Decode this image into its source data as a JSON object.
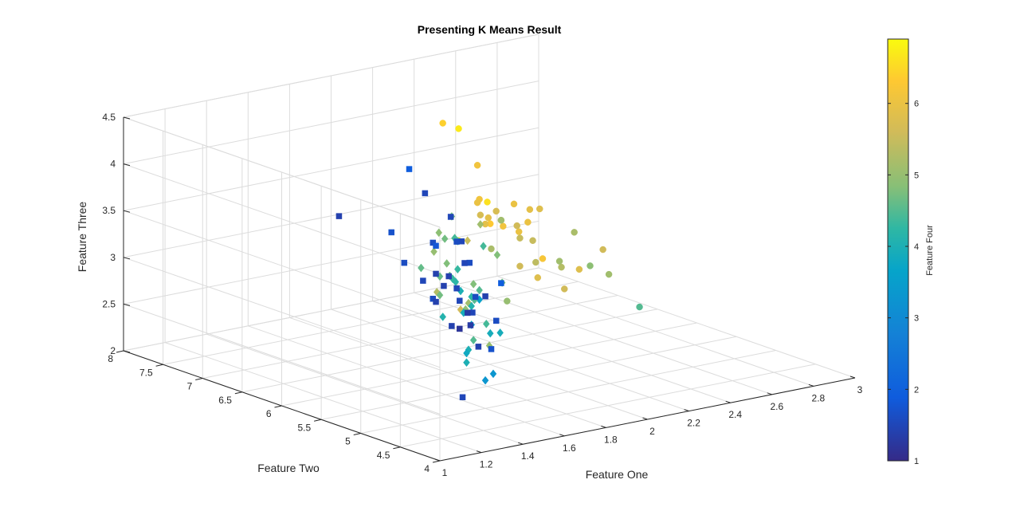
{
  "chart_data": {
    "type": "scatter",
    "title": "Presenting K Means Result",
    "xlabel": "Feature One",
    "ylabel": "Feature Two",
    "zlabel": "Feature Three",
    "colorbar_label": "Feature Four",
    "xlim": [
      1,
      3
    ],
    "ylim": [
      4,
      8
    ],
    "zlim": [
      2,
      4.5
    ],
    "clim": [
      1,
      6.9
    ],
    "xticks": [
      1,
      1.2,
      1.4,
      1.6,
      1.8,
      2,
      2.2,
      2.4,
      2.6,
      2.8,
      3
    ],
    "yticks": [
      4,
      4.5,
      5,
      5.5,
      6,
      6.5,
      7,
      7.5,
      8
    ],
    "zticks": [
      2,
      2.5,
      3,
      3.5,
      4,
      4.5
    ],
    "colorbar_ticks": [
      1,
      2,
      3,
      4,
      5,
      6
    ],
    "xtick_labels": [
      "1",
      "1.2",
      "1.4",
      "1.6",
      "1.8",
      "2",
      "2.2",
      "2.4",
      "2.6",
      "2.8",
      "3"
    ],
    "ytick_labels": [
      "4",
      "4.5",
      "5",
      "5.5",
      "6",
      "6.5",
      "7",
      "7.5",
      "8"
    ],
    "ztick_labels": [
      "2",
      "2.5",
      "3",
      "3.5",
      "4",
      "4.5"
    ],
    "colorbar_tick_labels": [
      "1",
      "2",
      "3",
      "4",
      "5",
      "6"
    ],
    "grid": true,
    "colormap": "parula",
    "series": [
      {
        "marker": "square",
        "points": [
          [
            1.4,
            5.0,
            3.4,
            1.4
          ],
          [
            1.3,
            4.5,
            2.4,
            1.5
          ],
          [
            1.4,
            4.8,
            3.3,
            1.5
          ],
          [
            1.5,
            5.4,
            3.1,
            1.6
          ],
          [
            1.3,
            4.3,
            3.0,
            1.4
          ],
          [
            1.4,
            5.1,
            3.2,
            1.4
          ],
          [
            1.6,
            5.2,
            3.5,
            1.6
          ],
          [
            1.4,
            4.4,
            2.9,
            1.7
          ],
          [
            1.5,
            4.6,
            3.1,
            1.6
          ],
          [
            1.4,
            4.9,
            3.0,
            1.4
          ],
          [
            1.3,
            5.0,
            3.5,
            1.5
          ],
          [
            1.5,
            5.4,
            3.7,
            1.6
          ],
          [
            1.4,
            5.1,
            3.8,
            1.8
          ],
          [
            1.2,
            5.8,
            4.0,
            1.4
          ],
          [
            1.5,
            5.7,
            4.4,
            1.9
          ],
          [
            1.3,
            5.4,
            3.9,
            1.7
          ],
          [
            1.4,
            5.1,
            3.5,
            1.4
          ],
          [
            1.7,
            5.7,
            3.8,
            1.5
          ],
          [
            1.5,
            5.1,
            3.8,
            1.6
          ],
          [
            1.6,
            5.0,
            3.2,
            1.4
          ],
          [
            1.4,
            4.7,
            3.2,
            1.3
          ],
          [
            1.5,
            5.2,
            3.4,
            1.4
          ],
          [
            1.5,
            5.5,
            4.2,
            1.5
          ],
          [
            1.4,
            4.6,
            3.4,
            1.6
          ],
          [
            1.5,
            4.9,
            3.1,
            1.5
          ],
          [
            1.6,
            4.8,
            3.4,
            1.9
          ],
          [
            1.5,
            5.1,
            3.3,
            1.5
          ],
          [
            1.4,
            5.5,
            3.5,
            1.6
          ],
          [
            1.3,
            4.4,
            3.2,
            1.3
          ],
          [
            1.6,
            5.3,
            3.7,
            1.5
          ],
          [
            1.4,
            4.8,
            3.0,
            1.2
          ],
          [
            1.5,
            5.0,
            3.6,
            1.5
          ]
        ]
      },
      {
        "marker": "diamond",
        "points": [
          [
            2.0,
            5.9,
            3.2,
            4.8
          ],
          [
            1.9,
            6.1,
            2.8,
            4.0
          ],
          [
            1.8,
            5.6,
            2.9,
            3.6
          ],
          [
            2.0,
            6.4,
            3.2,
            4.5
          ],
          [
            1.9,
            6.3,
            3.3,
            4.7
          ],
          [
            1.6,
            5.0,
            2.3,
            3.3
          ],
          [
            1.8,
            5.8,
            2.7,
            3.9
          ],
          [
            2.1,
            6.7,
            3.1,
            4.7
          ],
          [
            1.7,
            5.5,
            2.3,
            4.0
          ],
          [
            1.9,
            6.0,
            2.2,
            4.0
          ],
          [
            2.0,
            6.2,
            2.2,
            4.5
          ],
          [
            1.8,
            6.1,
            3.0,
            4.6
          ],
          [
            2.1,
            6.8,
            2.8,
            4.8
          ],
          [
            1.9,
            6.6,
            2.9,
            4.6
          ],
          [
            1.8,
            5.7,
            2.8,
            4.1
          ],
          [
            2.0,
            6.3,
            2.5,
            4.9
          ],
          [
            1.7,
            5.2,
            2.7,
            3.9
          ],
          [
            1.6,
            4.9,
            2.4,
            3.3
          ],
          [
            1.9,
            6.0,
            2.7,
            5.1
          ],
          [
            2.1,
            6.9,
            3.1,
            4.9
          ],
          [
            1.8,
            5.7,
            2.6,
            3.5
          ],
          [
            1.7,
            5.5,
            2.4,
            3.8
          ],
          [
            2.0,
            6.4,
            2.9,
            4.3
          ],
          [
            1.9,
            6.2,
            2.9,
            4.3
          ],
          [
            1.8,
            5.6,
            3.0,
            4.5
          ],
          [
            2.2,
            7.0,
            3.2,
            4.7
          ],
          [
            1.7,
            5.8,
            2.7,
            4.1
          ],
          [
            1.8,
            5.9,
            3.0,
            4.2
          ],
          [
            2.0,
            6.7,
            3.0,
            5.0
          ],
          [
            1.9,
            6.1,
            2.6,
            5.6
          ],
          [
            2.1,
            6.3,
            2.3,
            4.4
          ],
          [
            2.0,
            6.0,
            2.2,
            5.0
          ],
          [
            1.8,
            5.7,
            2.9,
            4.2
          ],
          [
            2.2,
            6.8,
            3.0,
            5.5
          ],
          [
            1.9,
            5.6,
            2.5,
            3.9
          ],
          [
            2.0,
            6.5,
            2.8,
            4.6
          ],
          [
            1.7,
            5.4,
            3.0,
            4.5
          ],
          [
            2.1,
            6.1,
            2.8,
            4.7
          ],
          [
            2.3,
            6.9,
            3.1,
            5.1
          ],
          [
            2.2,
            6.6,
            3.0,
            4.4
          ],
          [
            1.9,
            6.4,
            2.7,
            5.3
          ],
          [
            2.0,
            6.2,
            2.8,
            4.8
          ],
          [
            1.8,
            6.1,
            2.8,
            4.7
          ],
          [
            2.1,
            6.7,
            3.1,
            4.4
          ]
        ]
      },
      {
        "marker": "circle",
        "points": [
          [
            2.5,
            7.7,
            3.8,
            6.7
          ],
          [
            2.5,
            7.9,
            3.8,
            6.4
          ],
          [
            2.4,
            7.2,
            3.6,
            6.1
          ],
          [
            2.6,
            7.7,
            3.0,
            6.1
          ],
          [
            2.5,
            7.7,
            2.6,
            6.9
          ],
          [
            2.3,
            6.9,
            3.2,
            5.7
          ],
          [
            2.4,
            7.2,
            3.2,
            6.0
          ],
          [
            2.6,
            7.4,
            2.8,
            6.1
          ],
          [
            2.3,
            6.7,
            3.3,
            5.7
          ],
          [
            2.5,
            7.3,
            2.9,
            6.3
          ],
          [
            2.4,
            7.1,
            3.0,
            5.9
          ],
          [
            2.6,
            7.6,
            3.0,
            6.6
          ],
          [
            2.3,
            6.8,
            3.2,
            5.9
          ],
          [
            2.7,
            7.2,
            3.0,
            5.8
          ],
          [
            2.3,
            6.4,
            2.8,
            5.6
          ],
          [
            2.4,
            6.9,
            3.1,
            5.4
          ],
          [
            2.6,
            7.2,
            2.8,
            6.0
          ],
          [
            2.2,
            6.3,
            2.5,
            5.0
          ],
          [
            2.5,
            6.7,
            2.5,
            5.8
          ],
          [
            2.4,
            6.5,
            3.0,
            5.5
          ],
          [
            2.3,
            6.3,
            3.3,
            6.0
          ],
          [
            2.5,
            7.0,
            3.2,
            6.0
          ],
          [
            2.3,
            6.4,
            3.1,
            5.5
          ],
          [
            2.6,
            6.9,
            2.6,
            6.2
          ],
          [
            2.4,
            6.7,
            3.1,
            5.6
          ],
          [
            2.2,
            6.5,
            3.0,
            5.2
          ],
          [
            2.5,
            6.8,
            3.2,
            5.9
          ],
          [
            2.4,
            6.9,
            3.1,
            5.1
          ],
          [
            2.7,
            6.7,
            2.5,
            5.8
          ],
          [
            2.3,
            6.2,
            2.9,
            5.4
          ],
          [
            2.5,
            6.4,
            2.7,
            5.3
          ],
          [
            2.6,
            6.3,
            2.7,
            4.9
          ],
          [
            2.6,
            6.5,
            3.0,
            5.2
          ],
          [
            2.7,
            6.4,
            2.8,
            5.6
          ],
          [
            2.3,
            5.9,
            3.0,
            5.1
          ],
          [
            2.4,
            6.1,
            2.6,
            5.6
          ],
          [
            2.8,
            6.2,
            2.2,
            4.5
          ],
          [
            2.5,
            5.8,
            2.8,
            5.1
          ]
        ]
      }
    ]
  }
}
